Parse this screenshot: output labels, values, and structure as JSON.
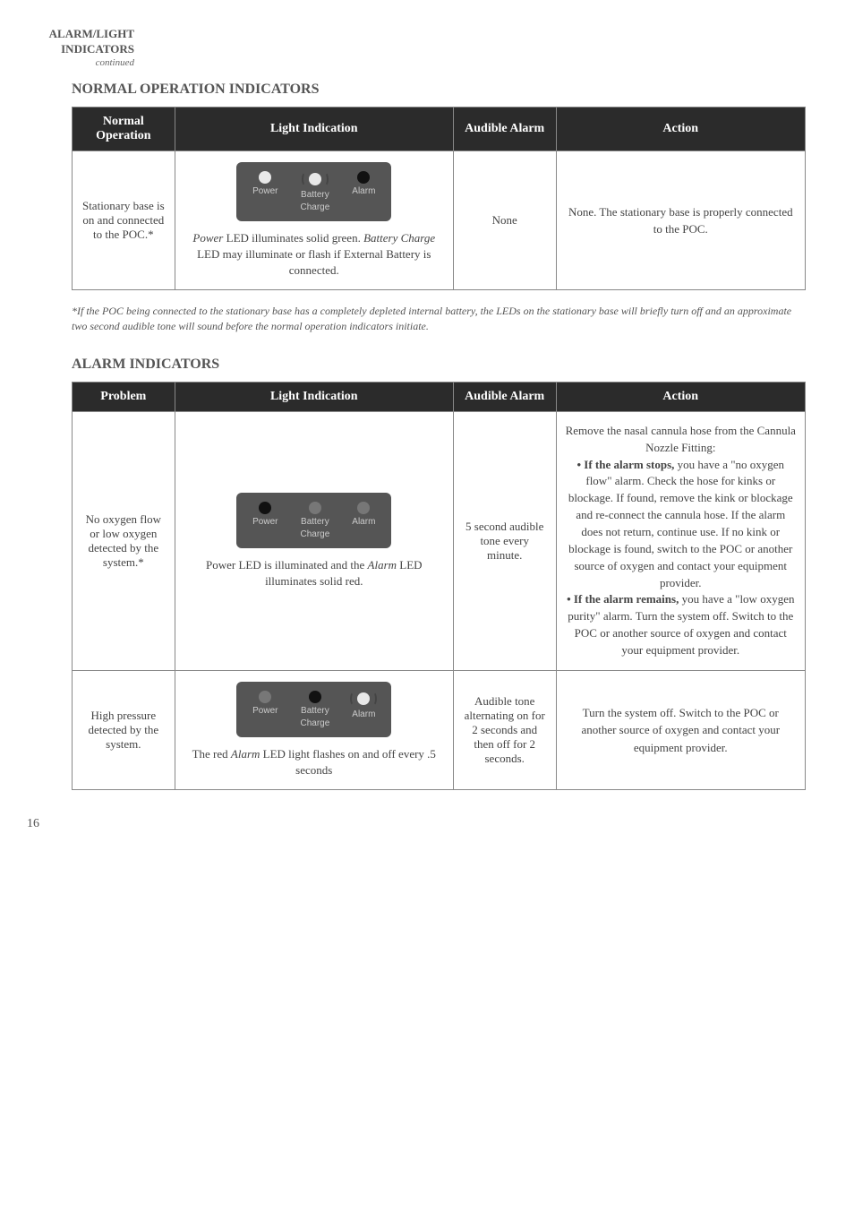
{
  "header": {
    "line1": "ALARM/LIGHT",
    "line2": "INDICATORS",
    "continued": "continued"
  },
  "section1": {
    "heading": "NORMAL OPERATION INDICATORS",
    "columns": [
      "Normal Operation",
      "Light Indication",
      "Audible Alarm",
      "Action"
    ],
    "row": {
      "operation": "Stationary base is on and connected to the POC.*",
      "led_labels": {
        "power": "Power",
        "battery": "Battery",
        "charge": "Charge",
        "alarm": "Alarm"
      },
      "light_desc_1": "Power",
      "light_desc_2": " LED illuminates solid green. ",
      "light_desc_3": "Battery Charge",
      "light_desc_4": " LED may illuminate or flash if External Battery is connected.",
      "audible": "None",
      "action": "None. The stationary base is properly connected to the POC."
    },
    "footnote": "*If the POC being connected to the stationary base has a completely depleted internal battery, the LEDs on the stationary base will briefly turn off and an approximate two second audible tone will sound before the normal operation indicators initiate."
  },
  "section2": {
    "heading": "ALARM INDICATORS",
    "columns": [
      "Problem",
      "Light Indication",
      "Audible Alarm",
      "Action"
    ],
    "rows": [
      {
        "problem": "No oxygen flow or low oxygen detected by the system.*",
        "led_labels": {
          "power": "Power",
          "battery": "Battery",
          "charge": "Charge",
          "alarm": "Alarm"
        },
        "light_desc_1": "Power LED is illuminated and the ",
        "light_desc_2": "Alarm",
        "light_desc_3": " LED illuminates solid red.",
        "audible": "5 second audible tone every minute.",
        "action_1": "Remove the nasal cannula hose from the Cannula Nozzle Fitting:",
        "action_bullet1_bold": "• If the alarm stops,",
        "action_bullet1_rest": " you have a  \"no oxygen flow\" alarm. Check the hose for kinks or blockage. If found, remove the kink or blockage and  re-connect the cannula hose.  If the alarm does not return, continue use.  If no kink or blockage is found, switch to the POC or another source of oxygen and contact your equipment provider.",
        "action_bullet2_bold": "• If the alarm remains,",
        "action_bullet2_rest": " you have a \"low oxygen purity\" alarm. Turn the system off. Switch to the POC or another source of oxygen and contact your equipment provider."
      },
      {
        "problem": "High pressure detected by the system.",
        "led_labels": {
          "power": "Power",
          "battery": "Battery",
          "charge": "Charge",
          "alarm": "Alarm"
        },
        "light_desc_1": "The red ",
        "light_desc_2": "Alarm",
        "light_desc_3": " LED light flashes on and off every .5 seconds",
        "audible": "Audible tone alternating on for 2 seconds and then off for 2 seconds.",
        "action": "Turn the system off. Switch to the POC or another source of oxygen and contact your  equipment provider."
      }
    ]
  },
  "page_number": "16",
  "colors": {
    "header_bg": "#2b2b2b",
    "border": "#888",
    "text": "#444",
    "panel_bg": "#555"
  }
}
